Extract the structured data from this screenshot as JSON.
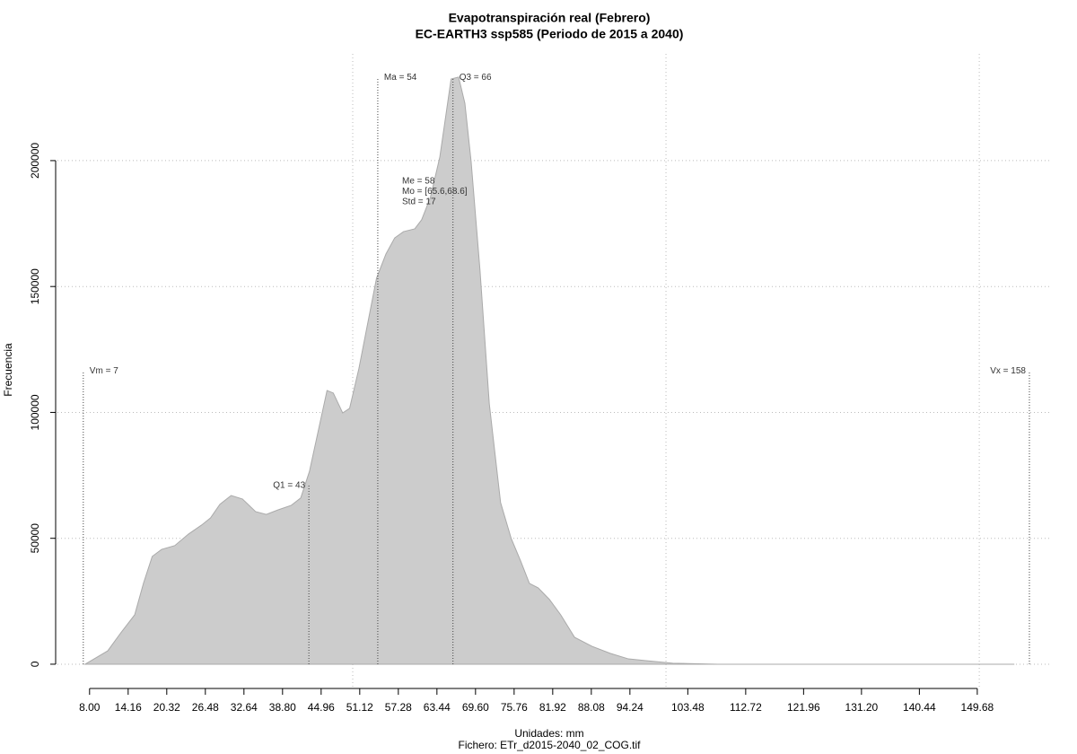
{
  "chart_data": {
    "type": "area",
    "title": "Evapotranspiración real (Febrero)",
    "subtitle": "EC-EARTH3 ssp585 (Periodo de 2015 a 2040)",
    "xlabel": "Unidades: mm",
    "caption": "Fichero: ETr_d2015-2040_02_COG.tif",
    "ylabel": "Frecuencia",
    "color": "#cccccc",
    "x": [
      7.3,
      10.9,
      13.0,
      15.2,
      16.6,
      18.0,
      19.5,
      21.6,
      23.8,
      25.9,
      27.3,
      28.8,
      30.6,
      32.4,
      34.5,
      36.2,
      38.1,
      40.2,
      41.7,
      43.1,
      44.5,
      45.9,
      46.9,
      48.4,
      49.5,
      51.0,
      52.4,
      53.8,
      55.3,
      56.7,
      58.1,
      59.9,
      61.0,
      62.4,
      63.9,
      65.7,
      66.9,
      67.9,
      68.9,
      70.3,
      71.8,
      73.6,
      75.3,
      76.8,
      78.2,
      79.6,
      81.4,
      83.2,
      85.4,
      88.2,
      91.1,
      94.0,
      96.8,
      101.1,
      108.3,
      155.6
    ],
    "values": [
      0,
      5300,
      12500,
      19600,
      32100,
      42800,
      45600,
      47100,
      51700,
      55300,
      58100,
      63500,
      67000,
      65600,
      60600,
      59500,
      61300,
      63100,
      66000,
      76600,
      92700,
      108700,
      107700,
      99800,
      101600,
      117600,
      135500,
      153300,
      162900,
      169300,
      171800,
      172900,
      176500,
      185400,
      201400,
      232400,
      233200,
      222800,
      199600,
      156900,
      103400,
      64200,
      49900,
      41000,
      32100,
      30300,
      25700,
      19600,
      10700,
      7100,
      4300,
      2100,
      1400,
      400,
      0,
      0
    ],
    "xlim": [
      2.3,
      161.3
    ],
    "ylim": [
      -10000,
      242400
    ],
    "xticks": [
      {
        "value": 8,
        "label": "8.00"
      },
      14.16,
      20.32,
      26.48,
      32.64,
      {
        "value": 38.8,
        "label": "38.80"
      },
      44.96,
      51.12,
      57.28,
      63.44,
      {
        "value": 69.6,
        "label": "69.60"
      },
      75.76,
      81.92,
      88.08,
      94.24,
      103.48,
      112.72,
      121.96,
      {
        "value": 131.2,
        "label": "131.20"
      },
      140.44,
      149.68
    ],
    "yticks": [
      0,
      50000,
      100000,
      150000,
      200000
    ],
    "grid": true,
    "xgrid": [
      50,
      100,
      150
    ],
    "stats": [
      {
        "label": "Vm = 7",
        "x": 7,
        "height": 116500,
        "side": "right"
      },
      {
        "label": "Q1 = 43",
        "x": 43,
        "height": 71000,
        "side": "left"
      },
      {
        "label": "Ma = 54",
        "x": 54,
        "height": 233000,
        "side": "right"
      },
      {
        "label": "Q3 = 66",
        "x": 66,
        "height": 233000,
        "side": "right"
      },
      {
        "label": "Vx = 158",
        "x": 158,
        "height": 116500,
        "side": "left"
      }
    ],
    "notes": [
      "Me = 58",
      "Mo = [65.6,68.6]",
      "Std = 17"
    ]
  }
}
